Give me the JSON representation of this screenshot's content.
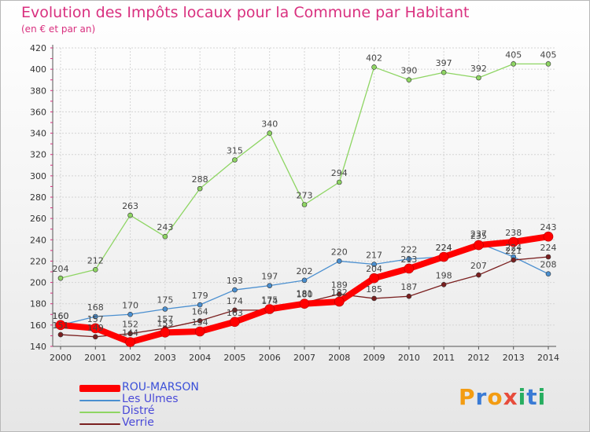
{
  "title": "Evolution des Impôts locaux pour la Commune par Habitant",
  "subtitle": "(en € et par an)",
  "logo": {
    "text": "Proxiti",
    "letter_colors": [
      "#f39c12",
      "#3a7bd5",
      "#f39c12",
      "#e74c3c",
      "#27ae60",
      "#3a7bd5",
      "#27ae60"
    ]
  },
  "chart_data": {
    "type": "line",
    "x": [
      2000,
      2001,
      2002,
      2003,
      2004,
      2005,
      2006,
      2007,
      2008,
      2009,
      2010,
      2011,
      2012,
      2013,
      2014
    ],
    "ylim": [
      140,
      420
    ],
    "yticks": [
      140,
      160,
      180,
      200,
      220,
      240,
      260,
      280,
      300,
      320,
      340,
      360,
      380,
      400,
      420
    ],
    "grid": true,
    "legend": "bottom-left",
    "series": [
      {
        "name": "ROU-MARSON",
        "color": "#ff0000",
        "values": [
          160,
          157,
          144,
          153,
          154,
          163,
          175,
          180,
          182,
          204,
          213,
          224,
          235,
          238,
          243
        ]
      },
      {
        "name": "Les Ulmes",
        "color": "#4a8fd0",
        "values": [
          160,
          168,
          170,
          175,
          179,
          193,
          197,
          202,
          220,
          217,
          222,
          224,
          237,
          224,
          208
        ]
      },
      {
        "name": "Distré",
        "color": "#8ed563",
        "values": [
          204,
          212,
          263,
          243,
          288,
          315,
          340,
          273,
          294,
          402,
          390,
          397,
          392,
          405,
          405
        ]
      },
      {
        "name": "Verrie",
        "color": "#7a1f1f",
        "values": [
          151,
          149,
          152,
          157,
          164,
          174,
          174,
          181,
          189,
          185,
          187,
          198,
          207,
          221,
          224
        ]
      }
    ]
  }
}
